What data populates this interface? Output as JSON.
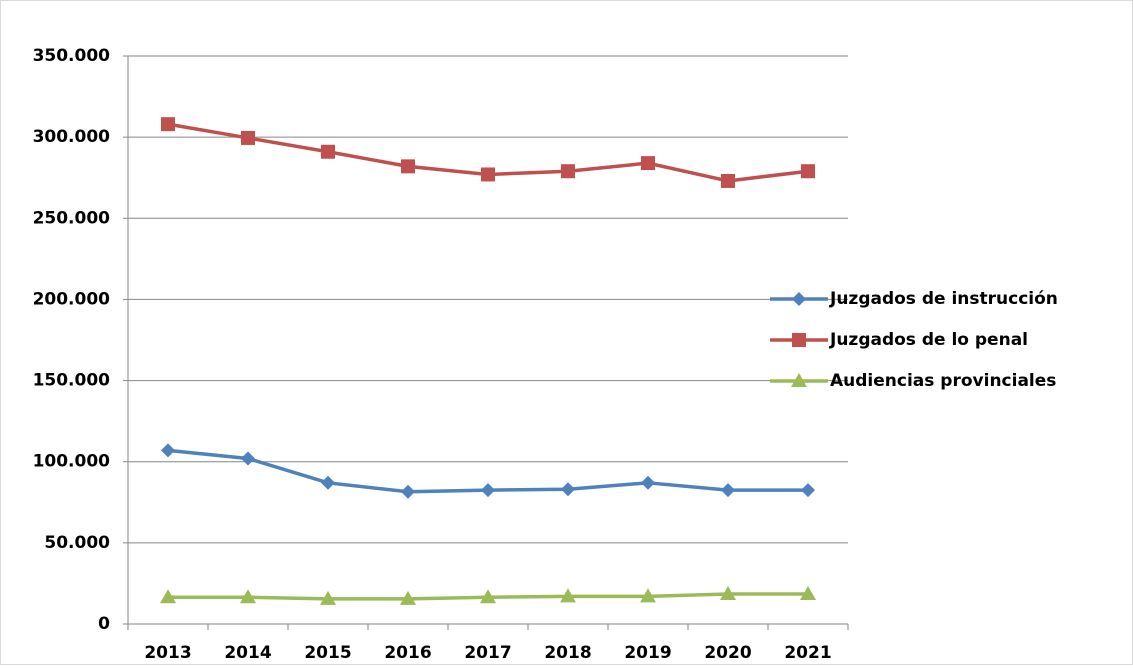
{
  "chart_data": {
    "type": "line",
    "categories": [
      "2013",
      "2014",
      "2015",
      "2016",
      "2017",
      "2018",
      "2019",
      "2020",
      "2021"
    ],
    "series": [
      {
        "name": "Juzgados de instrucción",
        "color": "#4f81bd",
        "marker": "diamond",
        "values": [
          107000,
          102000,
          87000,
          81500,
          82500,
          83000,
          87000,
          82500,
          82500
        ]
      },
      {
        "name": "Juzgados de lo penal",
        "color": "#c0504d",
        "marker": "square",
        "values": [
          308000,
          299500,
          291000,
          282000,
          277000,
          279000,
          284000,
          273000,
          279000
        ]
      },
      {
        "name": "Audiencias provinciales",
        "color": "#9bbb59",
        "marker": "triangle",
        "values": [
          16500,
          16500,
          15500,
          15500,
          16500,
          17000,
          17000,
          18500,
          18500
        ]
      }
    ],
    "ylim": [
      0,
      350000
    ],
    "yticks": [
      0,
      {
        "value": 50000,
        "label": "50.000"
      },
      {
        "value": 100000,
        "label": "100.000"
      },
      {
        "value": 150000,
        "label": "150.000"
      },
      {
        "value": 200000,
        "label": "200.000"
      },
      {
        "value": 250000,
        "label": "250.000"
      },
      {
        "value": 300000,
        "label": "300.000"
      },
      {
        "value": 350000,
        "label": "350.000"
      }
    ],
    "grid": true,
    "legend": "right"
  }
}
